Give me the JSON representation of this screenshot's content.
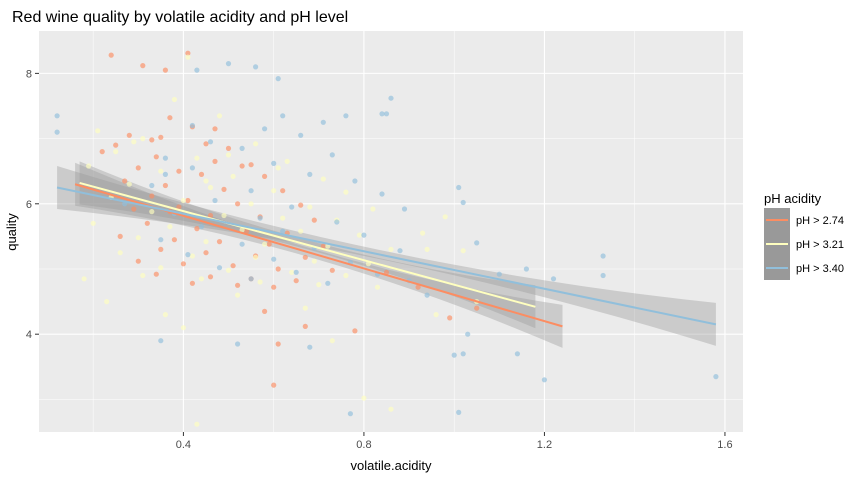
{
  "chart_data": {
    "type": "scatter",
    "title": "Red wine quality by volatile acidity and pH level",
    "xlabel": "volatile.acidity",
    "ylabel": "quality",
    "xlim": [
      0.08,
      1.64
    ],
    "ylim": [
      2.5,
      8.65
    ],
    "x_ticks": [
      0.4,
      0.8,
      1.2,
      1.6
    ],
    "x_tick_labels": [
      "0.4",
      "0.8",
      "1.2",
      "1.6"
    ],
    "y_ticks": [
      4,
      6,
      8
    ],
    "y_tick_labels": [
      "4",
      "6",
      "8"
    ],
    "grid": true,
    "legend": {
      "title": "pH acidity",
      "position": "right",
      "entries": [
        "pH > 2.74",
        "pH > 3.21",
        "pH > 3.40"
      ]
    },
    "colors": {
      "panel": "#EBEBEB",
      "grid": "#FFFFFF",
      "ribbon": "#999999",
      "legend_key": "#999999",
      "series": [
        "#FC8D62",
        "#FFFFBF",
        "#91BFDB"
      ]
    },
    "series": [
      {
        "name": "pH > 2.74",
        "color": "#FC8D62",
        "trend": [
          [
            0.16,
            6.3
          ],
          [
            1.24,
            4.12
          ]
        ],
        "points": [
          [
            0.24,
            8.28
          ],
          [
            0.41,
            8.31
          ],
          [
            0.31,
            8.12
          ],
          [
            0.36,
            8.05
          ],
          [
            0.37,
            7.32
          ],
          [
            0.42,
            7.18
          ],
          [
            0.28,
            7.05
          ],
          [
            0.33,
            6.98
          ],
          [
            0.45,
            6.92
          ],
          [
            0.5,
            6.85
          ],
          [
            0.22,
            6.8
          ],
          [
            0.34,
            6.72
          ],
          [
            0.47,
            6.65
          ],
          [
            0.55,
            6.6
          ],
          [
            0.3,
            6.55
          ],
          [
            0.39,
            6.5
          ],
          [
            0.44,
            6.45
          ],
          [
            0.58,
            6.42
          ],
          [
            0.27,
            6.35
          ],
          [
            0.36,
            6.28
          ],
          [
            0.49,
            6.22
          ],
          [
            0.62,
            6.2
          ],
          [
            0.33,
            6.12
          ],
          [
            0.41,
            6.05
          ],
          [
            0.52,
            6.0
          ],
          [
            0.66,
            5.98
          ],
          [
            0.29,
            5.92
          ],
          [
            0.37,
            5.88
          ],
          [
            0.46,
            5.82
          ],
          [
            0.57,
            5.8
          ],
          [
            0.69,
            5.75
          ],
          [
            0.32,
            5.7
          ],
          [
            0.43,
            5.62
          ],
          [
            0.54,
            5.58
          ],
          [
            0.63,
            5.55
          ],
          [
            0.26,
            5.5
          ],
          [
            0.38,
            5.45
          ],
          [
            0.48,
            5.42
          ],
          [
            0.59,
            5.38
          ],
          [
            0.71,
            5.35
          ],
          [
            0.35,
            5.3
          ],
          [
            0.45,
            5.25
          ],
          [
            0.56,
            5.2
          ],
          [
            0.67,
            5.18
          ],
          [
            0.3,
            5.12
          ],
          [
            0.4,
            5.08
          ],
          [
            0.51,
            5.05
          ],
          [
            0.61,
            5.0
          ],
          [
            0.73,
            4.98
          ],
          [
            0.34,
            4.92
          ],
          [
            0.46,
            4.88
          ],
          [
            0.55,
            4.85
          ],
          [
            0.65,
            4.82
          ],
          [
            0.42,
            4.78
          ],
          [
            0.52,
            4.75
          ],
          [
            0.6,
            4.72
          ],
          [
            0.85,
            4.95
          ],
          [
            0.92,
            4.72
          ],
          [
            1.05,
            4.4
          ],
          [
            0.58,
            4.35
          ],
          [
            0.61,
            3.85
          ],
          [
            0.67,
            4.12
          ],
          [
            0.6,
            3.22
          ],
          [
            0.78,
            4.05
          ],
          [
            0.99,
            4.25
          ],
          [
            0.39,
            5.95
          ],
          [
            0.53,
            6.58
          ],
          [
            0.47,
            7.15
          ],
          [
            0.35,
            7.02
          ],
          [
            0.25,
            6.9
          ]
        ]
      },
      {
        "name": "pH > 3.21",
        "color": "#FFFFBF",
        "trend": [
          [
            0.17,
            6.32
          ],
          [
            1.18,
            4.42
          ]
        ],
        "points": [
          [
            0.41,
            8.25
          ],
          [
            0.38,
            7.6
          ],
          [
            0.48,
            7.35
          ],
          [
            0.21,
            7.12
          ],
          [
            0.31,
            7.0
          ],
          [
            0.56,
            6.92
          ],
          [
            0.25,
            6.8
          ],
          [
            0.43,
            6.7
          ],
          [
            0.63,
            6.65
          ],
          [
            0.19,
            6.58
          ],
          [
            0.35,
            6.5
          ],
          [
            0.51,
            6.42
          ],
          [
            0.71,
            6.38
          ],
          [
            0.28,
            6.3
          ],
          [
            0.46,
            6.25
          ],
          [
            0.6,
            6.2
          ],
          [
            0.76,
            6.18
          ],
          [
            0.24,
            6.1
          ],
          [
            0.4,
            6.05
          ],
          [
            0.55,
            6.0
          ],
          [
            0.68,
            5.95
          ],
          [
            0.82,
            5.92
          ],
          [
            0.33,
            5.88
          ],
          [
            0.49,
            5.82
          ],
          [
            0.62,
            5.78
          ],
          [
            0.74,
            5.75
          ],
          [
            0.2,
            5.7
          ],
          [
            0.37,
            5.65
          ],
          [
            0.53,
            5.6
          ],
          [
            0.66,
            5.58
          ],
          [
            0.79,
            5.52
          ],
          [
            0.3,
            5.48
          ],
          [
            0.45,
            5.42
          ],
          [
            0.58,
            5.38
          ],
          [
            0.72,
            5.35
          ],
          [
            0.86,
            5.3
          ],
          [
            0.26,
            5.25
          ],
          [
            0.42,
            5.2
          ],
          [
            0.56,
            5.18
          ],
          [
            0.69,
            5.12
          ],
          [
            0.81,
            5.08
          ],
          [
            0.35,
            5.02
          ],
          [
            0.5,
            4.98
          ],
          [
            0.64,
            4.95
          ],
          [
            0.76,
            4.9
          ],
          [
            0.44,
            4.85
          ],
          [
            0.57,
            4.8
          ],
          [
            0.7,
            4.76
          ],
          [
            0.83,
            4.72
          ],
          [
            0.94,
            5.3
          ],
          [
            1.02,
            5.28
          ],
          [
            0.18,
            4.85
          ],
          [
            0.23,
            4.5
          ],
          [
            0.4,
            4.1
          ],
          [
            0.43,
            2.62
          ],
          [
            0.8,
            3.02
          ],
          [
            0.86,
            2.85
          ],
          [
            0.96,
            4.3
          ],
          [
            1.05,
            4.5
          ],
          [
            0.73,
            3.9
          ],
          [
            0.29,
            6.95
          ],
          [
            0.5,
            6.75
          ],
          [
            0.61,
            6.55
          ],
          [
            0.45,
            6.35
          ],
          [
            0.98,
            5.8
          ],
          [
            0.93,
            5.55
          ],
          [
            0.36,
            4.3
          ],
          [
            0.52,
            4.6
          ],
          [
            0.67,
            4.4
          ],
          [
            0.31,
            4.9
          ]
        ]
      },
      {
        "name": "pH > 3.40",
        "color": "#91BFDB",
        "trend": [
          [
            0.12,
            6.25
          ],
          [
            1.58,
            4.15
          ]
        ],
        "points": [
          [
            0.12,
            7.35
          ],
          [
            0.12,
            7.1
          ],
          [
            0.43,
            8.05
          ],
          [
            0.5,
            8.15
          ],
          [
            0.56,
            8.1
          ],
          [
            0.61,
            7.92
          ],
          [
            0.86,
            7.62
          ],
          [
            0.84,
            7.38
          ],
          [
            0.85,
            7.38
          ],
          [
            0.76,
            7.35
          ],
          [
            0.62,
            7.35
          ],
          [
            0.71,
            7.25
          ],
          [
            0.58,
            7.15
          ],
          [
            0.66,
            7.05
          ],
          [
            0.46,
            6.95
          ],
          [
            0.53,
            6.85
          ],
          [
            0.73,
            6.75
          ],
          [
            0.36,
            6.7
          ],
          [
            0.6,
            6.62
          ],
          [
            0.42,
            6.55
          ],
          [
            0.68,
            6.45
          ],
          [
            0.78,
            6.35
          ],
          [
            0.33,
            6.28
          ],
          [
            0.55,
            6.2
          ],
          [
            0.84,
            6.15
          ],
          [
            0.47,
            6.05
          ],
          [
            0.64,
            5.95
          ],
          [
            0.89,
            5.92
          ],
          [
            0.38,
            5.85
          ],
          [
            0.57,
            5.78
          ],
          [
            0.74,
            5.72
          ],
          [
            0.44,
            5.65
          ],
          [
            0.62,
            5.58
          ],
          [
            0.8,
            5.52
          ],
          [
            0.35,
            5.45
          ],
          [
            0.53,
            5.38
          ],
          [
            0.69,
            5.32
          ],
          [
            0.88,
            5.28
          ],
          [
            0.41,
            5.22
          ],
          [
            0.6,
            5.15
          ],
          [
            0.77,
            5.1
          ],
          [
            0.48,
            5.02
          ],
          [
            0.65,
            4.95
          ],
          [
            0.83,
            4.92
          ],
          [
            0.55,
            4.85
          ],
          [
            0.72,
            4.78
          ],
          [
            0.9,
            4.82
          ],
          [
            1.01,
            6.25
          ],
          [
            1.02,
            6.02
          ],
          [
            1.05,
            5.4
          ],
          [
            1.1,
            4.92
          ],
          [
            1.16,
            5.0
          ],
          [
            1.22,
            4.85
          ],
          [
            1.33,
            5.2
          ],
          [
            1.33,
            4.9
          ],
          [
            1.58,
            3.35
          ],
          [
            1.03,
            4.0
          ],
          [
            1.02,
            3.7
          ],
          [
            1.0,
            3.68
          ],
          [
            1.01,
            2.8
          ],
          [
            0.77,
            2.78
          ],
          [
            1.14,
            3.7
          ],
          [
            1.2,
            3.3
          ],
          [
            0.35,
            3.9
          ],
          [
            0.52,
            3.85
          ],
          [
            0.68,
            3.8
          ],
          [
            0.94,
            4.6
          ],
          [
            0.36,
            6.45
          ],
          [
            0.27,
            6.0
          ],
          [
            0.42,
            7.2
          ]
        ]
      }
    ]
  }
}
